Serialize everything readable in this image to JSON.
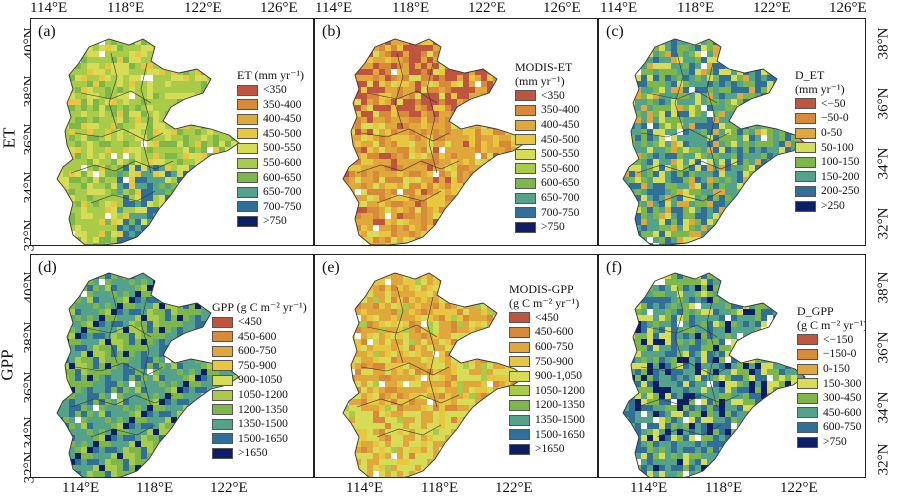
{
  "figure": {
    "lon_labels": [
      "114°E",
      "118°E",
      "122°E",
      "126°E"
    ],
    "lon_labels_bottom": [
      "114°E",
      "118°E",
      "122°E"
    ],
    "lat_labels_left": [
      "40°N",
      "38°N",
      "36°N",
      "34°N",
      "32°N"
    ],
    "lat_labels_right": [
      "38°N",
      "36°N",
      "34°N",
      "32°N"
    ],
    "row_labels": {
      "et": "ET",
      "gpp": "GPP"
    }
  },
  "panels": {
    "a": {
      "letter": "(a)",
      "legend_title_1": "ET (mm yr⁻¹)",
      "legend_title_2": "",
      "classes": [
        "<350",
        "350-400",
        "400-450",
        "450-500",
        "500-550",
        "550-600",
        "600-650",
        "650-700",
        "700-750",
        ">750"
      ],
      "colors": [
        "#c0553f",
        "#d88a3b",
        "#e0a83a",
        "#e8c640",
        "#d6dc55",
        "#a8cc4a",
        "#7db64a",
        "#55a28a",
        "#2f6f9a",
        "#0c1f66"
      ]
    },
    "b": {
      "letter": "(b)",
      "legend_title_1": "MODIS-ET",
      "legend_title_2": "(mm yr⁻¹)",
      "classes": [
        "<350",
        "350-400",
        "400-450",
        "450-500",
        "500-550",
        "550-600",
        "600-650",
        "650-700",
        "700-750",
        ">750"
      ],
      "colors": [
        "#c0553f",
        "#d88a3b",
        "#e0a83a",
        "#e8c640",
        "#d6dc55",
        "#a8cc4a",
        "#7db64a",
        "#55a28a",
        "#2f6f9a",
        "#0c1f66"
      ]
    },
    "c": {
      "letter": "(c)",
      "legend_title_1": "D_ET",
      "legend_title_2": "(mm yr⁻¹)",
      "classes": [
        "<−50",
        "−50-0",
        "0-50",
        "50-100",
        "100-150",
        "150-200",
        "200-250",
        ">250"
      ],
      "colors": [
        "#c0553f",
        "#d88a3b",
        "#e0a83a",
        "#d6dc55",
        "#7db64a",
        "#55a28a",
        "#2f6f9a",
        "#0c1f66"
      ]
    },
    "d": {
      "letter": "(d)",
      "legend_title_1": "GPP (g C m⁻² yr⁻¹)",
      "legend_title_2": "",
      "classes": [
        "<450",
        "450-600",
        "600-750",
        "750-900",
        "900-1050",
        "1050-1200",
        "1200-1350",
        "1350-1500",
        "1500-1650",
        ">1650"
      ],
      "colors": [
        "#c0553f",
        "#d88a3b",
        "#e0a83a",
        "#e8c640",
        "#d6dc55",
        "#a8cc4a",
        "#7db64a",
        "#55a28a",
        "#2f6f9a",
        "#0c1f66"
      ]
    },
    "e": {
      "letter": "(e)",
      "legend_title_1": "MODIS-GPP",
      "legend_title_2": "(g C m⁻² yr⁻¹)",
      "classes": [
        "<450",
        "450-600",
        "600-750",
        "750-900",
        "900-1,050",
        "1050-1200",
        "1200-1350",
        "1350-1500",
        "1500-1650",
        ">1650"
      ],
      "colors": [
        "#c0553f",
        "#d88a3b",
        "#e0a83a",
        "#e8c640",
        "#d6dc55",
        "#a8cc4a",
        "#7db64a",
        "#55a28a",
        "#2f6f9a",
        "#0c1f66"
      ]
    },
    "f": {
      "letter": "(f)",
      "legend_title_1": "D_GPP",
      "legend_title_2": "(g C m⁻² yr⁻¹)",
      "classes": [
        "<−150",
        "−150-0",
        "0-150",
        "150-300",
        "300-450",
        "450-600",
        "600-750",
        ">750"
      ],
      "colors": [
        "#c0553f",
        "#d88a3b",
        "#e0a83a",
        "#d6dc55",
        "#7db64a",
        "#55a28a",
        "#2f6f9a",
        "#0c1f66"
      ]
    }
  }
}
